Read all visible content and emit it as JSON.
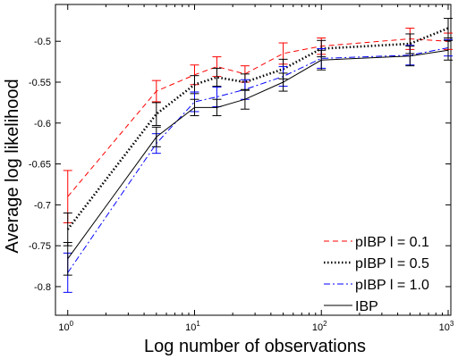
{
  "chart_data": {
    "type": "line",
    "title": "",
    "xlabel": "Log number of observations",
    "ylabel": "Average log likelihood",
    "xscale": "log",
    "xlim": [
      0.8,
      1050
    ],
    "ylim": [
      -0.835,
      -0.455
    ],
    "xticks": [
      1,
      10,
      100,
      1000
    ],
    "xtick_labels": [
      {
        "base": "10",
        "exp": "0"
      },
      {
        "base": "10",
        "exp": "1"
      },
      {
        "base": "10",
        "exp": "2"
      },
      {
        "base": "10",
        "exp": "3"
      }
    ],
    "yticks": [
      -0.8,
      -0.75,
      -0.7,
      -0.65,
      -0.6,
      -0.55,
      -0.5
    ],
    "ytick_labels": [
      "-0.8",
      "-0.75",
      "-0.7",
      "-0.65",
      "-0.6",
      "-0.55",
      "-0.5"
    ],
    "grid": false,
    "legend_position": "bottom-right",
    "x": [
      1,
      5,
      10,
      15,
      25,
      50,
      100,
      500,
      1000
    ],
    "series": [
      {
        "name": "pIBP l = 0.1",
        "color": "#ff0000",
        "style": "dashed",
        "values": [
          -0.69,
          -0.561,
          -0.541,
          -0.531,
          -0.54,
          -0.515,
          -0.506,
          -0.497,
          -0.5
        ],
        "errors": [
          0.032,
          0.013,
          0.012,
          0.012,
          0.01,
          0.013,
          0.01,
          0.013,
          0.01
        ]
      },
      {
        "name": "pIBP l = 0.5",
        "color": "#000000",
        "style": "dotted",
        "values": [
          -0.73,
          -0.589,
          -0.553,
          -0.544,
          -0.55,
          -0.534,
          -0.509,
          -0.503,
          -0.484
        ],
        "errors": [
          0.02,
          0.014,
          0.011,
          0.011,
          0.01,
          0.012,
          0.01,
          0.012,
          0.012
        ]
      },
      {
        "name": "pIBP l = 1.0",
        "color": "#0000ff",
        "style": "dashdot",
        "values": [
          -0.783,
          -0.625,
          -0.574,
          -0.568,
          -0.559,
          -0.543,
          -0.521,
          -0.517,
          -0.508
        ],
        "errors": [
          0.024,
          0.012,
          0.012,
          0.012,
          0.012,
          0.012,
          0.012,
          0.012,
          0.01
        ]
      },
      {
        "name": "IBP",
        "color": "#000000",
        "style": "solid",
        "values": [
          -0.766,
          -0.617,
          -0.581,
          -0.581,
          -0.571,
          -0.55,
          -0.523,
          -0.518,
          -0.511
        ],
        "errors": [
          0.02,
          0.012,
          0.01,
          0.01,
          0.012,
          0.011,
          0.012,
          0.012,
          0.012
        ]
      }
    ]
  }
}
